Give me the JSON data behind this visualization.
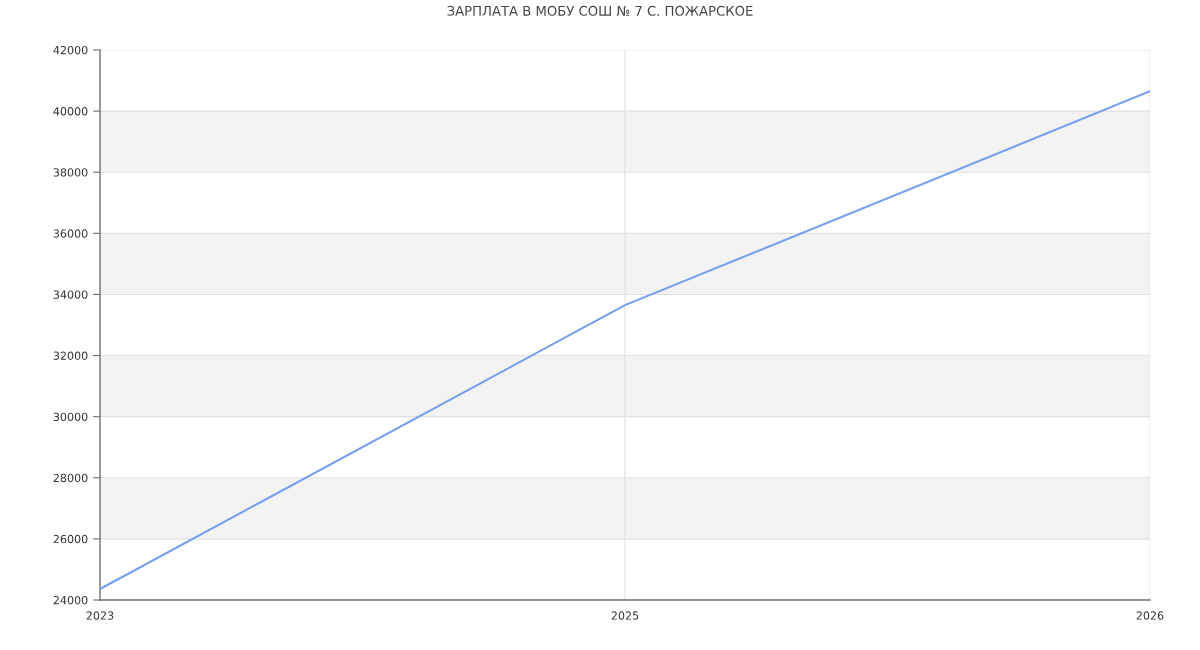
{
  "chart_data": {
    "type": "line",
    "title": "ЗАРПЛАТА В МОБУ СОШ № 7 С. ПОЖАРСКОЕ",
    "categories": [
      "2023",
      "2025",
      "2026"
    ],
    "series": [
      {
        "color": "#75a0f0",
        "values": [
          24360,
          33650,
          40650
        ]
      }
    ],
    "ylim": [
      24000,
      42000
    ],
    "yticks": [
      24000,
      26000,
      28000,
      30000,
      32000,
      34000,
      36000,
      38000,
      40000,
      42000
    ],
    "grid": true,
    "bands": [
      {
        "axis": "y",
        "from": 26000,
        "to": 28000,
        "color": "#f3f3f3"
      },
      {
        "axis": "y",
        "from": 30000,
        "to": 32000,
        "color": "#f3f3f3"
      },
      {
        "axis": "y",
        "from": 34000,
        "to": 36000,
        "color": "#f3f3f3"
      },
      {
        "axis": "y",
        "from": 38000,
        "to": 40000,
        "color": "#f3f3f3"
      }
    ]
  }
}
